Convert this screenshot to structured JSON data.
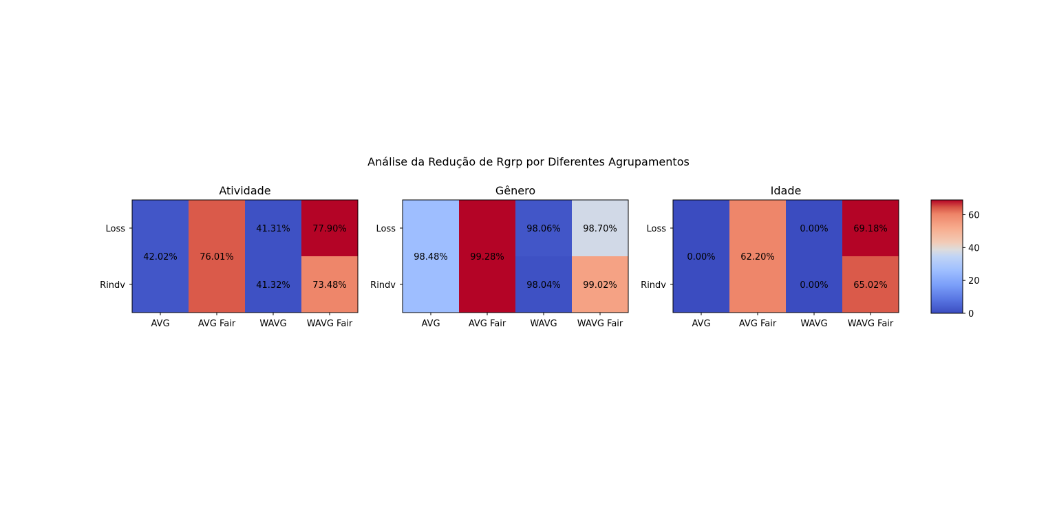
{
  "figure": {
    "suptitle": "Análise da Redução de Rgrp por Diferentes Agrupamentos"
  },
  "chart_data": [
    {
      "type": "heatmap",
      "title": "Atividade",
      "x": [
        "AVG",
        "AVG Fair",
        "WAVG",
        "WAVG Fair"
      ],
      "y": [
        "Loss",
        "Rindv"
      ],
      "values": [
        [
          2,
          64,
          1,
          69
        ],
        [
          2,
          64,
          1,
          60
        ]
      ],
      "annotations": [
        {
          "col": 0,
          "row_span": "both",
          "text": "42.02%"
        },
        {
          "col": 1,
          "row_span": "both",
          "text": "76.01%"
        },
        {
          "col": 2,
          "row": 0,
          "text": "41.31%"
        },
        {
          "col": 2,
          "row": 1,
          "text": "41.32%"
        },
        {
          "col": 3,
          "row": 0,
          "text": "77.90%"
        },
        {
          "col": 3,
          "row": 1,
          "text": "73.48%"
        }
      ]
    },
    {
      "type": "heatmap",
      "title": "Gênero",
      "x": [
        "AVG",
        "AVG Fair",
        "WAVG",
        "WAVG Fair"
      ],
      "y": [
        "Loss",
        "Rindv"
      ],
      "values": [
        [
          26,
          69,
          2,
          37
        ],
        [
          26,
          69,
          1,
          54
        ]
      ],
      "annotations": [
        {
          "col": 0,
          "row_span": "both",
          "text": "98.48%"
        },
        {
          "col": 1,
          "row_span": "both",
          "text": "99.28%"
        },
        {
          "col": 2,
          "row": 0,
          "text": "98.06%"
        },
        {
          "col": 2,
          "row": 1,
          "text": "98.04%"
        },
        {
          "col": 3,
          "row": 0,
          "text": "98.70%"
        },
        {
          "col": 3,
          "row": 1,
          "text": "99.02%"
        }
      ]
    },
    {
      "type": "heatmap",
      "title": "Idade",
      "x": [
        "AVG",
        "AVG Fair",
        "WAVG",
        "WAVG Fair"
      ],
      "y": [
        "Loss",
        "Rindv"
      ],
      "values": [
        [
          0,
          60,
          0,
          69
        ],
        [
          0,
          60,
          0,
          64
        ]
      ],
      "annotations": [
        {
          "col": 0,
          "row_span": "both",
          "text": "0.00%"
        },
        {
          "col": 1,
          "row_span": "both",
          "text": "62.20%"
        },
        {
          "col": 2,
          "row": 0,
          "text": "0.00%"
        },
        {
          "col": 2,
          "row": 1,
          "text": "0.00%"
        },
        {
          "col": 3,
          "row": 0,
          "text": "69.18%"
        },
        {
          "col": 3,
          "row": 1,
          "text": "65.02%"
        }
      ]
    }
  ],
  "colorbar": {
    "colormap": "coolwarm",
    "range": [
      0,
      69
    ],
    "ticks": [
      0,
      20,
      40,
      60
    ],
    "tick_labels": [
      "0",
      "20",
      "40",
      "60"
    ]
  }
}
